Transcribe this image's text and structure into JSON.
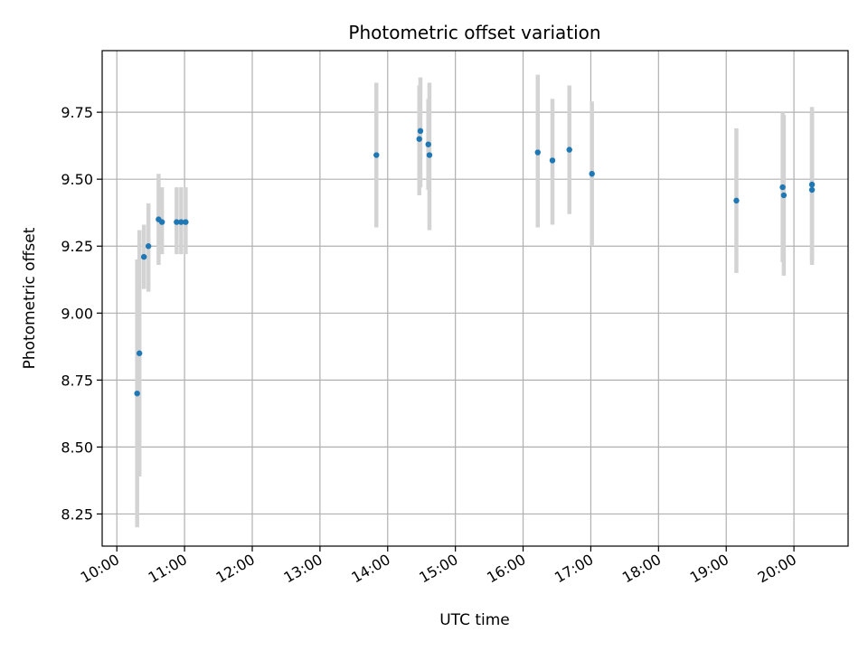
{
  "chart_data": {
    "type": "scatter",
    "title": "Photometric offset variation",
    "xlabel": "UTC time",
    "ylabel": "Photometric offset",
    "xlim": [
      "09:47",
      "20:48"
    ],
    "ylim": [
      8.13,
      9.98
    ],
    "xticks": [
      "10:00",
      "11:00",
      "12:00",
      "13:00",
      "14:00",
      "15:00",
      "16:00",
      "17:00",
      "18:00",
      "19:00",
      "20:00"
    ],
    "yticks": [
      "8.25",
      "8.50",
      "8.75",
      "9.00",
      "9.25",
      "9.50",
      "9.75"
    ],
    "grid": true,
    "colors": {
      "point": "#1f77b4",
      "errorbar": "#d3d3d3",
      "grid": "#b0b0b0"
    },
    "points": [
      {
        "x": "10:18",
        "y": 8.7,
        "err_low": 8.2,
        "err_high": 9.2
      },
      {
        "x": "10:20",
        "y": 8.85,
        "err_low": 8.39,
        "err_high": 9.31
      },
      {
        "x": "10:24",
        "y": 9.21,
        "err_low": 9.09,
        "err_high": 9.33
      },
      {
        "x": "10:28",
        "y": 9.25,
        "err_low": 9.08,
        "err_high": 9.41
      },
      {
        "x": "10:37",
        "y": 9.35,
        "err_low": 9.18,
        "err_high": 9.52
      },
      {
        "x": "10:40",
        "y": 9.34,
        "err_low": 9.22,
        "err_high": 9.47
      },
      {
        "x": "10:53",
        "y": 9.34,
        "err_low": 9.22,
        "err_high": 9.47
      },
      {
        "x": "10:57",
        "y": 9.34,
        "err_low": 9.22,
        "err_high": 9.47
      },
      {
        "x": "11:01",
        "y": 9.34,
        "err_low": 9.22,
        "err_high": 9.47
      },
      {
        "x": "13:50",
        "y": 9.59,
        "err_low": 9.32,
        "err_high": 9.86
      },
      {
        "x": "14:28",
        "y": 9.65,
        "err_low": 9.44,
        "err_high": 9.85
      },
      {
        "x": "14:29",
        "y": 9.68,
        "err_low": 9.47,
        "err_high": 9.88
      },
      {
        "x": "14:36",
        "y": 9.63,
        "err_low": 9.46,
        "err_high": 9.8
      },
      {
        "x": "14:37",
        "y": 9.59,
        "err_low": 9.31,
        "err_high": 9.86
      },
      {
        "x": "16:13",
        "y": 9.6,
        "err_low": 9.32,
        "err_high": 9.89
      },
      {
        "x": "16:26",
        "y": 9.57,
        "err_low": 9.33,
        "err_high": 9.8
      },
      {
        "x": "16:41",
        "y": 9.61,
        "err_low": 9.37,
        "err_high": 9.85
      },
      {
        "x": "17:01",
        "y": 9.52,
        "err_low": 9.25,
        "err_high": 9.79
      },
      {
        "x": "19:09",
        "y": 9.42,
        "err_low": 9.15,
        "err_high": 9.69
      },
      {
        "x": "19:50",
        "y": 9.47,
        "err_low": 9.19,
        "err_high": 9.75
      },
      {
        "x": "19:51",
        "y": 9.44,
        "err_low": 9.14,
        "err_high": 9.74
      },
      {
        "x": "20:16",
        "y": 9.48,
        "err_low": 9.2,
        "err_high": 9.77
      },
      {
        "x": "20:16",
        "y": 9.46,
        "err_low": 9.18,
        "err_high": 9.75
      }
    ]
  }
}
